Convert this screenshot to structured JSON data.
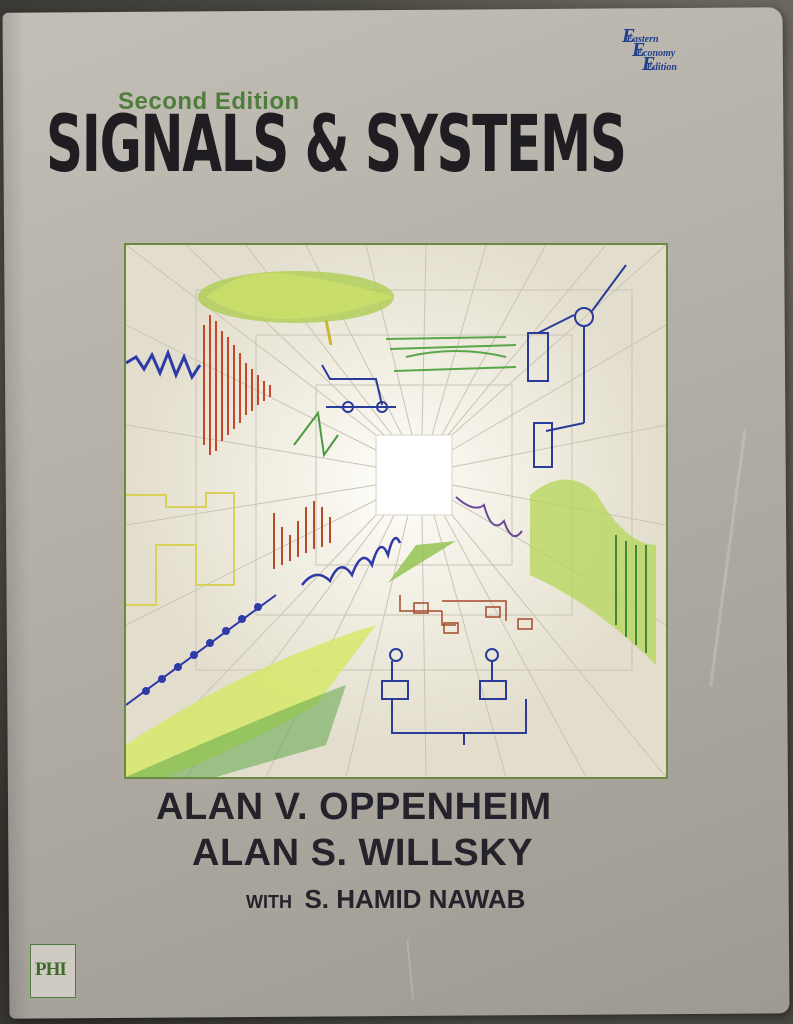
{
  "badge": {
    "line1": "Eastern",
    "line2": "Economy",
    "line3": "Edition"
  },
  "cover": {
    "edition": "Second Edition",
    "title": "SIGNALS & SYSTEMS",
    "authors": [
      "ALAN V. OPPENHEIM",
      "ALAN S. WILLSKY"
    ],
    "with_label": "WITH",
    "coauthor": "S. HAMID NAWAB",
    "publisher_logo": "PHI"
  },
  "colors": {
    "title": "#1f1d22",
    "edition": "#4f7d3c",
    "badge": "#1f3f8a",
    "art_border": "#6a8a44"
  }
}
